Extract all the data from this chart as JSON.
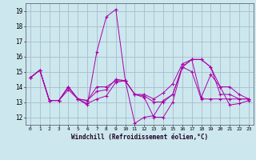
{
  "background_color": "#cce8ee",
  "grid_color": "#aabbcc",
  "line_color": "#aa00aa",
  "xlim": [
    -0.5,
    23.5
  ],
  "ylim": [
    11.5,
    19.5
  ],
  "yticks": [
    12,
    13,
    14,
    15,
    16,
    17,
    18,
    19
  ],
  "xticks": [
    0,
    1,
    2,
    3,
    4,
    5,
    6,
    7,
    8,
    9,
    10,
    11,
    12,
    13,
    14,
    15,
    16,
    17,
    18,
    19,
    20,
    21,
    22,
    23
  ],
  "xlabel": "Windchill (Refroidissement éolien,°C)",
  "series": [
    [
      14.6,
      15.1,
      13.1,
      13.1,
      14.0,
      13.2,
      12.8,
      16.3,
      18.6,
      19.1,
      14.4,
      11.6,
      12.0,
      12.1,
      13.1,
      13.5,
      15.3,
      15.8,
      13.3,
      14.8,
      14.0,
      12.8,
      12.9,
      13.1
    ],
    [
      14.6,
      15.1,
      13.1,
      13.1,
      14.0,
      13.2,
      13.1,
      14.0,
      14.0,
      14.4,
      14.4,
      13.5,
      13.5,
      13.2,
      13.6,
      14.2,
      15.5,
      15.8,
      15.8,
      15.3,
      13.5,
      13.5,
      13.2,
      13.2
    ],
    [
      14.6,
      15.1,
      13.1,
      13.1,
      13.8,
      13.2,
      13.1,
      13.7,
      13.8,
      14.5,
      14.4,
      13.5,
      13.4,
      13.0,
      13.0,
      13.5,
      15.3,
      15.8,
      15.8,
      15.3,
      14.0,
      14.0,
      13.5,
      13.2
    ],
    [
      14.6,
      15.1,
      13.1,
      13.1,
      14.0,
      13.2,
      12.9,
      13.2,
      13.4,
      14.3,
      14.4,
      13.5,
      13.3,
      12.0,
      12.0,
      13.0,
      15.3,
      15.0,
      13.2,
      13.2,
      13.2,
      13.2,
      13.2,
      13.2
    ]
  ]
}
